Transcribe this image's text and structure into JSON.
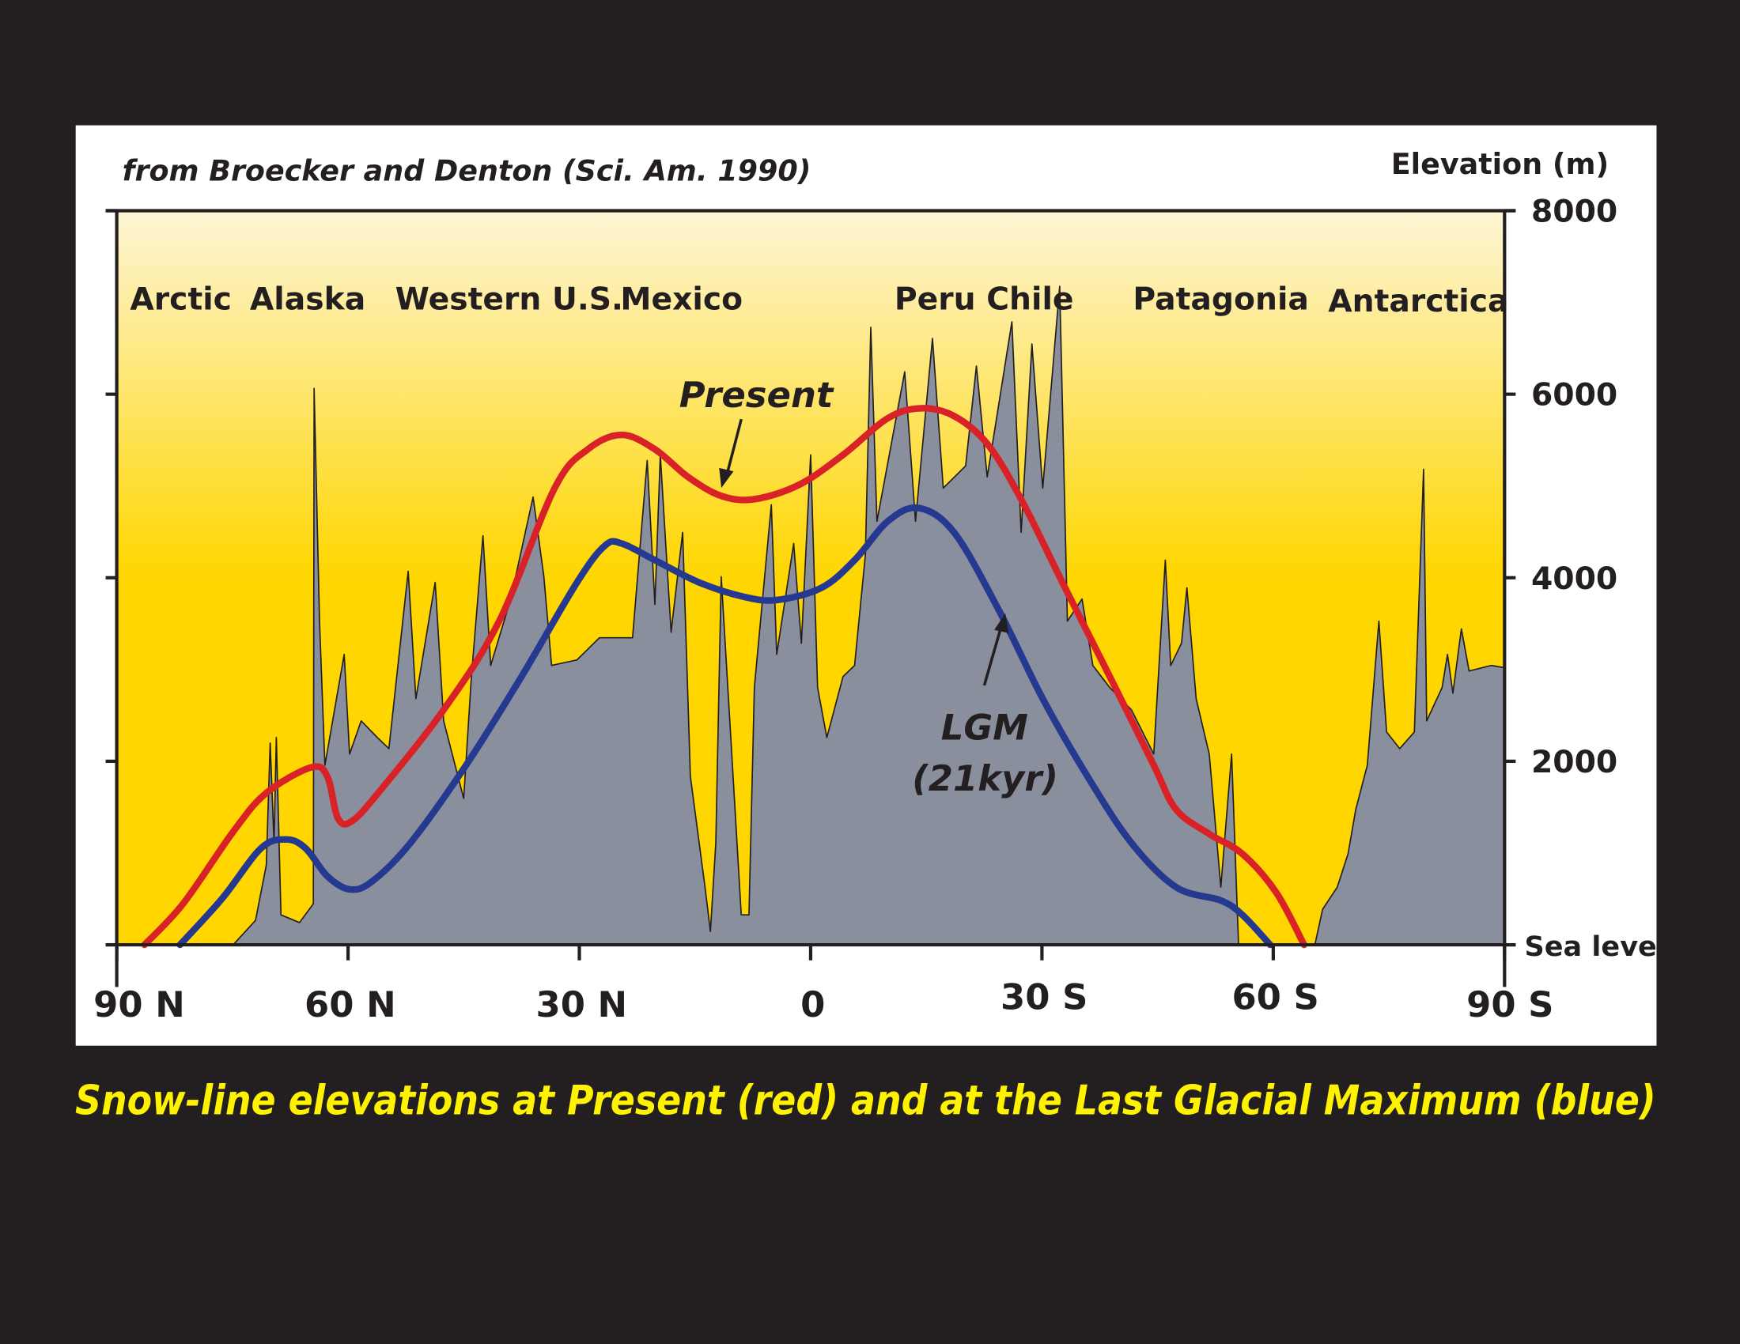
{
  "source_note": "from Broecker and Denton (Sci. Am. 1990)",
  "caption": "Snow-line elevations at Present (red) and at the Last Glacial Maximum (blue)",
  "colors": {
    "background": "#231f20",
    "panel": "#ffffff",
    "present": "#d92128",
    "lgm": "#24398f",
    "terrain": "#8a8f9d",
    "sky_top": "#fdf5d6",
    "sky_bottom": "#ffd600",
    "caption": "#fff200"
  },
  "chart_data": {
    "type": "area",
    "title": "",
    "xlabel": "",
    "ylabel": "Elevation (m)",
    "xlim": [
      90,
      -90
    ],
    "ylim": [
      0,
      8000
    ],
    "x_ticks": [
      {
        "value": 90,
        "label": "90 N"
      },
      {
        "value": 60,
        "label": "60 N"
      },
      {
        "value": 30,
        "label": "30 N"
      },
      {
        "value": 0,
        "label": "0"
      },
      {
        "value": -30,
        "label": "30 S"
      },
      {
        "value": -60,
        "label": "60 S"
      },
      {
        "value": -90,
        "label": "90 S"
      }
    ],
    "y_ticks": [
      {
        "value": 0,
        "label": "Sea level"
      },
      {
        "value": 2000,
        "label": "2000"
      },
      {
        "value": 4000,
        "label": "4000"
      },
      {
        "value": 6000,
        "label": "6000"
      },
      {
        "value": 8000,
        "label": "8000"
      }
    ],
    "regions": [
      {
        "label": "Arctic",
        "lat": 84
      },
      {
        "label": "Alaska",
        "lat": 68
      },
      {
        "label": "Western U.S.",
        "lat": 48
      },
      {
        "label": "Mexico",
        "lat": 26
      },
      {
        "label": "Peru Chile",
        "lat": -19
      },
      {
        "label": "Patagonia",
        "lat": -48
      },
      {
        "label": "Antarctica",
        "lat": -73
      }
    ],
    "annotations": [
      {
        "label": "Present",
        "series": "Present"
      },
      {
        "label": "LGM",
        "series": "LGM"
      },
      {
        "label": "(21kyr)",
        "series": "LGM"
      }
    ],
    "series": [
      {
        "name": "Terrain",
        "type": "area",
        "lat": [
          90,
          74.9,
          72.0,
          70.6,
          70.1,
          69.6,
          69.3,
          68.7,
          66.3,
          64.5,
          64.4,
          63.7,
          63.0,
          60.5,
          59.8,
          58.3,
          56.2,
          54.7,
          52.2,
          51.2,
          48.7,
          47.6,
          45.0,
          44.0,
          42.5,
          41.5,
          38.9,
          36.0,
          34.6,
          33.6,
          30.3,
          27.4,
          23.1,
          21.2,
          20.2,
          19.5,
          18.1,
          16.6,
          15.6,
          13.7,
          13.0,
          12.3,
          11.6,
          10.4,
          9.0,
          8.0,
          7.3,
          5.1,
          4.4,
          2.2,
          1.2,
          0.0,
          -0.9,
          -2.1,
          -4.2,
          -5.7,
          -7.1,
          -7.8,
          -8.6,
          -12.2,
          -13.6,
          -15.8,
          -17.2,
          -20.1,
          -21.5,
          -22.9,
          -26.1,
          -27.3,
          -28.7,
          -30.1,
          -32.3,
          -33.3,
          -35.2,
          -36.6,
          -38.8,
          -41.6,
          -44.5,
          -46.0,
          -46.7,
          -48.1,
          -48.8,
          -50.0,
          -51.7,
          -53.2,
          -54.6,
          -55.5,
          -65.4,
          -66.4,
          -68.3,
          -69.7,
          -70.7,
          -72.2,
          -73.7,
          -74.7,
          -76.4,
          -78.3,
          -79.5,
          -79.9,
          -81.9,
          -82.6,
          -83.3,
          -84.4,
          -85.4,
          -88.3,
          -90.0
        ],
        "elevation": [
          0,
          0,
          266,
          870,
          2199,
          1111,
          2259,
          326,
          242,
          447,
          6064,
          3527,
          1957,
          3165,
          2078,
          2440,
          2259,
          2138,
          4071,
          2682,
          3950,
          2440,
          1595,
          2923,
          4458,
          3044,
          3769,
          4880,
          4011,
          3044,
          3105,
          3346,
          3346,
          5279,
          3709,
          5339,
          3407,
          4494,
          1836,
          628,
          145,
          1111,
          4011,
          2319,
          326,
          326,
          2803,
          4796,
          3165,
          4373,
          3286,
          5339,
          2803,
          2259,
          2923,
          3044,
          4252,
          6729,
          4615,
          6245,
          4615,
          6608,
          4977,
          5219,
          6306,
          5098,
          6789,
          4494,
          6547,
          4977,
          7176,
          3527,
          3769,
          3044,
          2803,
          2561,
          2078,
          4192,
          3044,
          3286,
          3890,
          2682,
          2078,
          628,
          2078,
          0,
          0,
          387,
          628,
          991,
          1474,
          1957,
          3527,
          2319,
          2138,
          2319,
          5182,
          2440,
          2803,
          3165,
          2742,
          3443,
          2984,
          3044,
          3020
        ]
      },
      {
        "name": "Present",
        "type": "line",
        "color": "#d92128",
        "lat": [
          86.4,
          81.4,
          74.9,
          70.6,
          64.8,
          62.7,
          61.3,
          59.4,
          55.5,
          47.6,
          40.4,
          33.2,
          28.9,
          24.5,
          20.2,
          15.9,
          11.6,
          7.3,
          1.5,
          -4.2,
          -10.0,
          -14.3,
          -18.6,
          -22.9,
          -27.3,
          -33.0,
          -38.8,
          -44.5,
          -47.4,
          -51.7,
          -56.0,
          -60.4,
          -64.0
        ],
        "elevation": [
          0,
          447,
          1232,
          1655,
          1933,
          1836,
          1377,
          1353,
          1715,
          2561,
          3527,
          4977,
          5400,
          5557,
          5400,
          5098,
          4892,
          4856,
          5013,
          5339,
          5738,
          5847,
          5762,
          5460,
          4856,
          3890,
          2923,
          1957,
          1474,
          1208,
          991,
          568,
          0
        ]
      },
      {
        "name": "LGM",
        "type": "line",
        "color": "#24398f",
        "lat": [
          81.8,
          76.3,
          71.3,
          68.0,
          65.5,
          62.7,
          59.8,
          56.9,
          51.9,
          44.7,
          37.5,
          30.3,
          26.7,
          24.5,
          20.2,
          14.5,
          8.7,
          4.4,
          -1.4,
          -5.7,
          -10.0,
          -14.0,
          -18.6,
          -24.4,
          -30.1,
          -35.9,
          -41.6,
          -47.4,
          -53.2,
          -56.0,
          -59.6
        ],
        "elevation": [
          0,
          507,
          1051,
          1148,
          1051,
          749,
          604,
          689,
          1111,
          1957,
          2923,
          3950,
          4349,
          4373,
          4192,
          3950,
          3793,
          3757,
          3890,
          4192,
          4615,
          4760,
          4494,
          3648,
          2682,
          1836,
          1111,
          628,
          483,
          326,
          0
        ]
      }
    ]
  }
}
